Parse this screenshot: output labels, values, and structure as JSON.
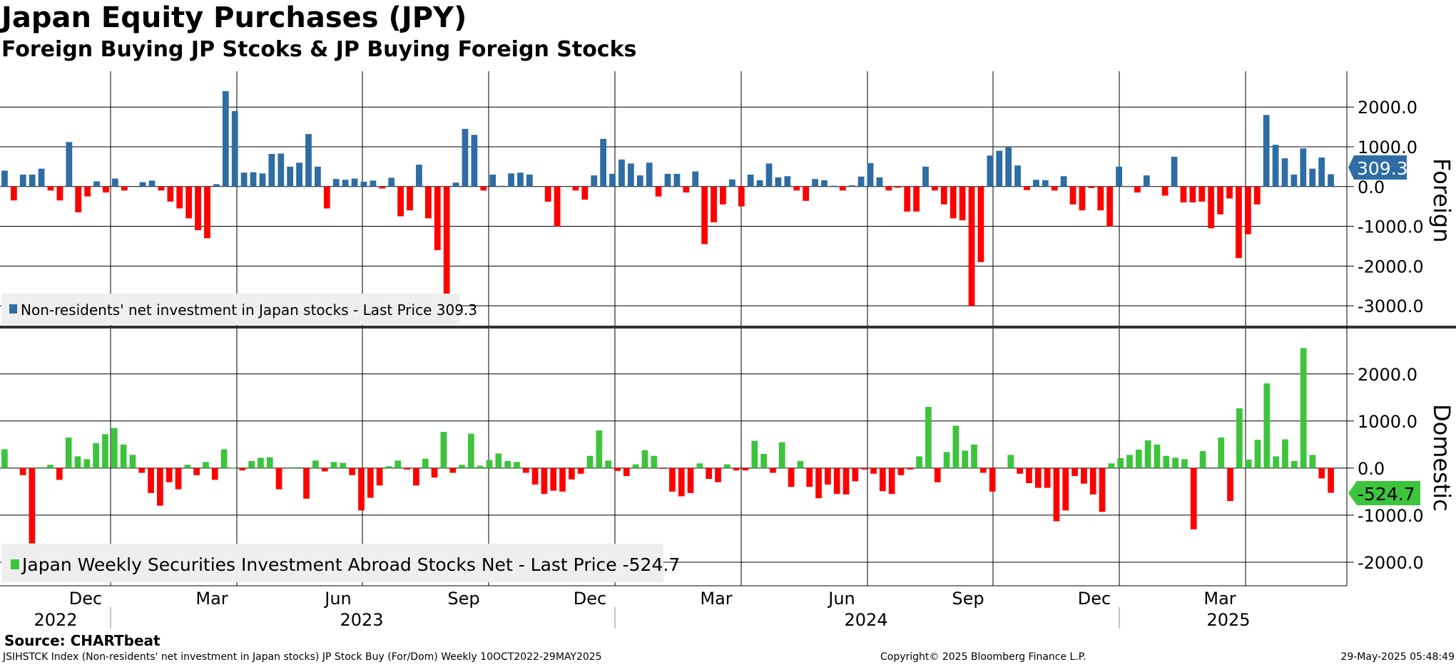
{
  "title": "Japan Equity Purchases (JPY)",
  "subtitle": "Foreign Buying JP Stcoks & JP Buying Foreign Stocks",
  "source": "Source: CHARTbeat",
  "footer": {
    "left": "JSIHSTCK Index (Non-residents' net investment in Japan stocks) JP Stock Buy (For/Dom)  Weekly 10OCT2022-29MAY2025",
    "center": "Copyright© 2025 Bloomberg Finance L.P.",
    "right": "29-May-2025 05:48:49"
  },
  "colors": {
    "blue": "#2e6da4",
    "red": "#ff0000",
    "green": "#3cc43c",
    "grid": "#000000"
  },
  "chart_data": [
    {
      "type": "bar",
      "panel_label": "Foreign",
      "legend": "Non-residents' net investment in Japan stocks - Last Price 309.3",
      "last_value_label": "309.3",
      "ylim": [
        -3500,
        2900
      ],
      "yticks": [
        "2000.0",
        "1000.0",
        "0.0",
        "-1000.0",
        "-2000.0",
        "-3000.0"
      ],
      "ytick_values": [
        2000,
        1000,
        0,
        -1000,
        -2000,
        -3000
      ],
      "values": [
        400,
        -350,
        300,
        300,
        450,
        -100,
        -350,
        1120,
        -650,
        -250,
        130,
        -150,
        200,
        -100,
        0,
        110,
        150,
        -100,
        -380,
        -550,
        -800,
        -1100,
        -1300,
        60,
        2400,
        1900,
        350,
        360,
        330,
        820,
        830,
        500,
        600,
        1320,
        500,
        -550,
        190,
        170,
        200,
        120,
        150,
        -50,
        220,
        -750,
        -600,
        550,
        -800,
        -1600,
        -3000,
        100,
        1450,
        1300,
        -100,
        300,
        20,
        330,
        350,
        300,
        0,
        -380,
        -1000,
        0,
        -100,
        -330,
        280,
        1200,
        320,
        680,
        580,
        280,
        600,
        -250,
        320,
        320,
        -150,
        380,
        -1450,
        -900,
        -450,
        180,
        -500,
        300,
        160,
        580,
        230,
        260,
        -100,
        -360,
        190,
        160,
        20,
        -100,
        30,
        250,
        590,
        230,
        -100,
        -30,
        -630,
        -630,
        500,
        -100,
        -450,
        -800,
        -850,
        -3000,
        -1900,
        780,
        900,
        1000,
        530,
        -90,
        170,
        160,
        -100,
        260,
        -450,
        -600,
        -40,
        -600,
        -1000,
        500,
        0,
        -150,
        280,
        0,
        -230,
        750,
        -400,
        -400,
        -380,
        -1050,
        -700,
        -300,
        -1800,
        -1200,
        -450,
        1800,
        1050,
        710,
        300,
        960,
        450,
        730,
        309.3
      ]
    },
    {
      "type": "bar",
      "panel_label": "Domestic",
      "legend": "Japan Weekly Securities Investment Abroad Stocks Net - Last Price -524.7",
      "last_value_label": "-524.7",
      "ylim": [
        -2500,
        2950
      ],
      "yticks": [
        "2000.0",
        "1000.0",
        "0.0",
        "-1000.0",
        "-2000.0"
      ],
      "ytick_values": [
        2000,
        1000,
        0,
        -1000,
        -2000
      ],
      "values": [
        400,
        0,
        -150,
        -1600,
        20,
        70,
        -250,
        650,
        250,
        190,
        530,
        720,
        850,
        500,
        280,
        -100,
        -530,
        -800,
        -300,
        -450,
        70,
        -150,
        130,
        -250,
        400,
        10,
        -50,
        150,
        220,
        230,
        -450,
        0,
        20,
        -650,
        160,
        -70,
        130,
        110,
        -150,
        -900,
        -630,
        -370,
        40,
        160,
        -30,
        -370,
        200,
        -200,
        770,
        -100,
        70,
        730,
        50,
        170,
        310,
        150,
        130,
        -100,
        -350,
        -550,
        -480,
        -500,
        -240,
        -120,
        260,
        800,
        160,
        -60,
        -170,
        80,
        380,
        260,
        -10,
        -500,
        -600,
        -530,
        100,
        -230,
        -300,
        80,
        -50,
        -50,
        580,
        300,
        -100,
        550,
        -400,
        150,
        -400,
        -640,
        -350,
        -550,
        -560,
        -280,
        -30,
        -120,
        -490,
        -550,
        -150,
        -30,
        250,
        1300,
        -300,
        340,
        900,
        370,
        500,
        -100,
        -500,
        0,
        280,
        -120,
        -320,
        -420,
        -420,
        -1130,
        -900,
        -170,
        -330,
        -560,
        -930,
        100,
        210,
        280,
        390,
        590,
        500,
        260,
        220,
        190,
        -1300,
        360,
        0,
        650,
        -700,
        1270,
        180,
        600,
        1800,
        250,
        610,
        150,
        2550,
        280,
        -220,
        -524.7
      ]
    }
  ],
  "x_axis": {
    "months": [
      "Dec",
      "Mar",
      "Jun",
      "Sep",
      "Dec",
      "Mar",
      "Jun",
      "Sep",
      "Dec",
      "Mar"
    ],
    "years": [
      "2022",
      "2023",
      "2024",
      "2025"
    ]
  }
}
